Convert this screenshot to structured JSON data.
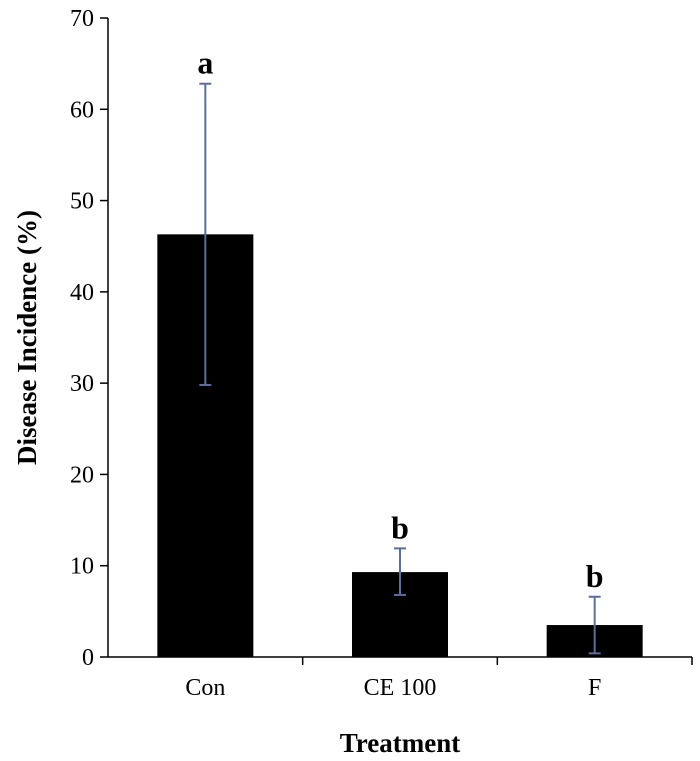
{
  "chart_data": {
    "type": "bar",
    "categories": [
      "Con",
      "CE 100",
      "F"
    ],
    "values": [
      46.3,
      9.3,
      3.5
    ],
    "error_upper": [
      62.8,
      11.9,
      6.6
    ],
    "error_lower": [
      29.8,
      6.8,
      0.4
    ],
    "significance": [
      "a",
      "b",
      "b"
    ],
    "xlabel": "Treatment",
    "ylabel": "Disease Incidence  (%)",
    "ylim": [
      0,
      70
    ],
    "yticks": [
      0,
      10,
      20,
      30,
      40,
      50,
      60,
      70
    ],
    "grid": false,
    "colors": {
      "bar": "#000000",
      "error_bar": "#5a6f99",
      "axis": "#000000"
    }
  }
}
